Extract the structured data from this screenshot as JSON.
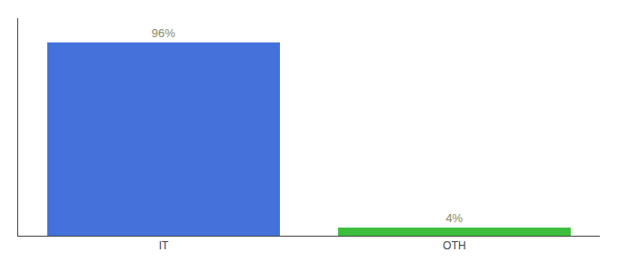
{
  "chart_data": {
    "type": "bar",
    "categories": [
      "IT",
      "OTH"
    ],
    "values": [
      96,
      4
    ],
    "value_labels": [
      "96%",
      "4%"
    ],
    "colors": [
      "#4472db",
      "#3dbf3d"
    ],
    "ylim": [
      0,
      108
    ],
    "yticks": [],
    "tick_labels": "x",
    "data_labels": true,
    "grid": false
  }
}
